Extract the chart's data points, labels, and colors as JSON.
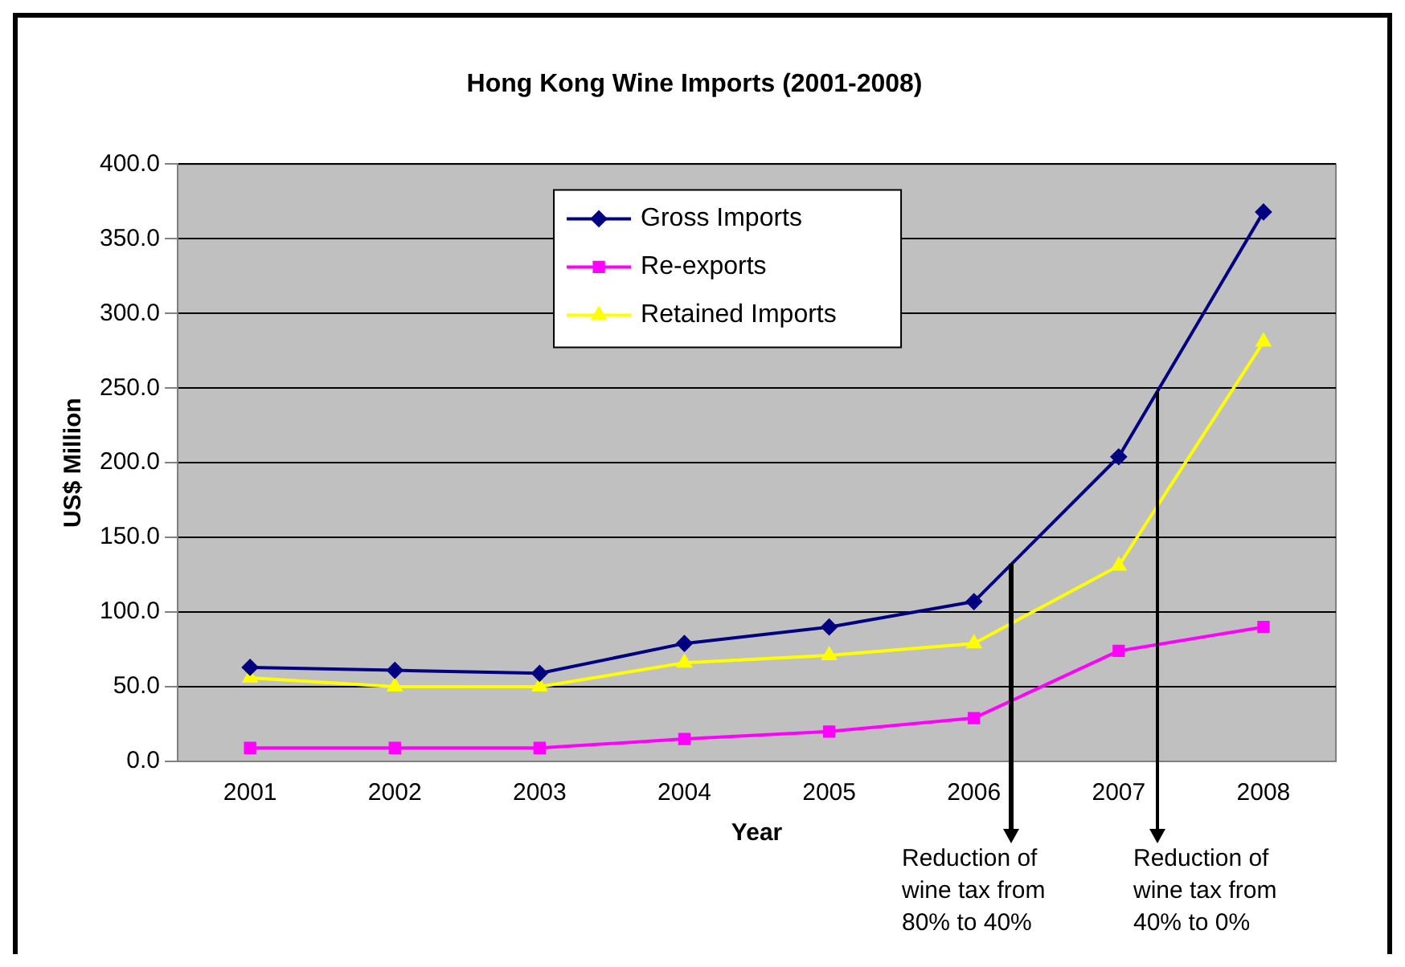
{
  "chart_data": {
    "type": "line",
    "title": "Hong Kong Wine Imports (2001-2008)",
    "xlabel": "Year",
    "ylabel": "US$ Million",
    "categories": [
      "2001",
      "2002",
      "2003",
      "2004",
      "2005",
      "2006",
      "2007",
      "2008"
    ],
    "series": [
      {
        "name": "Gross Imports",
        "color": "#000080",
        "marker": "diamond",
        "values": [
          63,
          61,
          59,
          79,
          90,
          107,
          204,
          368
        ]
      },
      {
        "name": "Re-exports",
        "color": "#ff00ff",
        "marker": "square",
        "values": [
          9,
          9,
          9,
          15,
          20,
          29,
          74,
          90
        ]
      },
      {
        "name": "Retained Imports",
        "color": "#ffff00",
        "marker": "triangle",
        "values": [
          56,
          50,
          50,
          66,
          71,
          79,
          131,
          281
        ]
      }
    ],
    "ylim": [
      0,
      400
    ],
    "yticks": [
      {
        "value": 0,
        "label": "0.0"
      },
      {
        "value": 50,
        "label": "50.0"
      },
      {
        "value": 100,
        "label": "100.0"
      },
      {
        "value": 150,
        "label": "150.0"
      },
      {
        "value": 200,
        "label": "200.0"
      },
      {
        "value": 250,
        "label": "250.0"
      },
      {
        "value": 300,
        "label": "300.0"
      },
      {
        "value": 350,
        "label": "350.0"
      },
      {
        "value": 400,
        "label": "400.0"
      }
    ],
    "grid": "y",
    "legend": "top",
    "annotations": [
      "Reduction of wine tax from 80% to 40%",
      "Reduction of wine tax from 40% to 0%"
    ]
  }
}
